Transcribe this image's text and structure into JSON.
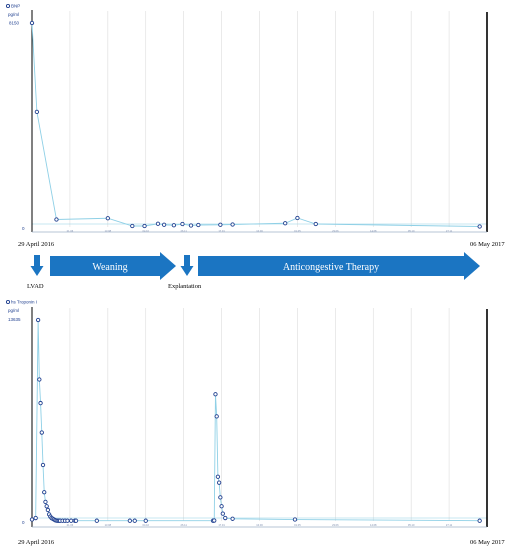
{
  "colors": {
    "marker": "#1f3f8f",
    "line": "#8fd0e6",
    "grid": "#dcdcdc",
    "arrow": "#1b75c2"
  },
  "chart_data": [
    {
      "type": "line",
      "title": "BNP",
      "ylabel": "pg/ml",
      "y_tick_labels": [
        "8150",
        "0"
      ],
      "ylim": [
        0,
        8150
      ],
      "x_date_range": [
        "29 April 2016",
        "06 May 2017"
      ],
      "x_axis_tick_labels": [
        "21.06",
        "13.08",
        "04.10",
        "26.11",
        "17.01",
        "10.03",
        "01.05",
        "23.06",
        "14.08",
        "05.10",
        "27.11"
      ],
      "series": [
        {
          "x": [
            "2016-04-29",
            "2016-05-03",
            "2016-05-19",
            "2016-06-30",
            "2016-07-20",
            "2016-07-30",
            "2016-08-10",
            "2016-08-15",
            "2016-08-23",
            "2016-08-30",
            "2016-09-06",
            "2016-09-12",
            "2016-09-30",
            "2016-10-10",
            "2016-11-22",
            "2016-12-02",
            "2016-12-17",
            "2017-04-30"
          ],
          "y": [
            8150,
            4600,
            300,
            350,
            40,
            40,
            130,
            90,
            70,
            120,
            60,
            80,
            90,
            100,
            150,
            360,
            120,
            20
          ]
        }
      ]
    },
    {
      "type": "line",
      "title": "hs Troponin I",
      "ylabel": "pg/ml",
      "y_tick_labels": [
        "13635",
        "0"
      ],
      "ylim": [
        0,
        13635
      ],
      "x_date_range": [
        "29 April 2016",
        "06 May 2017"
      ],
      "x_axis_tick_labels": [
        "21.06",
        "13.08",
        "04.10",
        "26.11",
        "17.01",
        "10.03",
        "01.05",
        "23.06",
        "14.08",
        "05.10",
        "27.11"
      ],
      "series": [
        {
          "x": [
            "2016-04-29",
            "2016-05-02",
            "2016-05-04",
            "2016-05-05",
            "2016-05-06",
            "2016-05-07",
            "2016-05-08",
            "2016-05-09",
            "2016-05-10",
            "2016-05-11",
            "2016-05-12",
            "2016-05-13",
            "2016-05-14",
            "2016-05-15",
            "2016-05-16",
            "2016-05-17",
            "2016-05-18",
            "2016-05-19",
            "2016-05-20",
            "2016-05-21",
            "2016-05-22",
            "2016-05-24",
            "2016-05-26",
            "2016-05-28",
            "2016-05-31",
            "2016-06-03",
            "2016-06-04",
            "2016-06-21",
            "2016-07-18",
            "2016-07-22",
            "2016-07-31",
            "2016-09-24",
            "2016-09-25",
            "2016-09-26",
            "2016-09-27",
            "2016-09-28",
            "2016-09-29",
            "2016-09-30",
            "2016-10-01",
            "2016-10-02",
            "2016-10-04",
            "2016-10-10",
            "2016-11-30",
            "2017-04-30"
          ],
          "y": [
            100,
            200,
            13635,
            9600,
            8000,
            6000,
            3800,
            1950,
            1300,
            1000,
            750,
            450,
            300,
            200,
            150,
            100,
            50,
            30,
            20,
            20,
            20,
            20,
            20,
            20,
            20,
            20,
            20,
            20,
            20,
            20,
            20,
            20,
            30,
            8600,
            7100,
            3000,
            2600,
            1600,
            1000,
            500,
            200,
            150,
            100,
            20
          ]
        }
      ]
    }
  ],
  "timeline": {
    "start_date": "29 April 2016",
    "end_date": "06 May 2017",
    "phases": [
      {
        "label": "Weaning"
      },
      {
        "label": "Anticongestive Therapy"
      }
    ],
    "events": [
      {
        "label": "LVAD"
      },
      {
        "label": "Explantation"
      }
    ]
  }
}
